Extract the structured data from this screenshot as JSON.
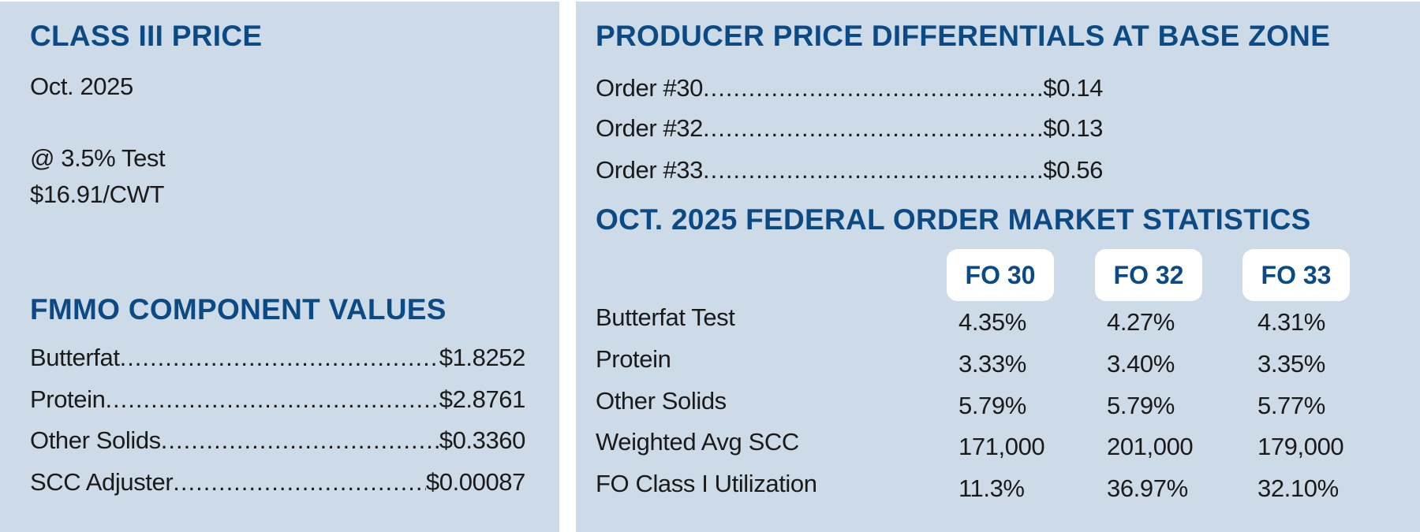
{
  "class_iii": {
    "title": "CLASS III PRICE",
    "month": "Oct. 2025",
    "test": "@ 3.5% Test",
    "price": "$16.91/CWT"
  },
  "fmmo": {
    "title": "FMMO COMPONENT VALUES",
    "items": [
      {
        "label": "Butterfat",
        "value": "$1.8252"
      },
      {
        "label": "Protein",
        "value": "$2.8761"
      },
      {
        "label": "Other Solids",
        "value": "$0.3360"
      },
      {
        "label": "SCC Adjuster",
        "value": "$0.00087"
      }
    ]
  },
  "ppd": {
    "title": "PRODUCER PRICE DIFFERENTIALS AT BASE ZONE",
    "items": [
      {
        "label": "Order #30",
        "value": "$0.14"
      },
      {
        "label": "Order #32",
        "value": "$0.13"
      },
      {
        "label": "Order #33",
        "value": "$0.56"
      }
    ]
  },
  "stats": {
    "title": "OCT. 2025 FEDERAL ORDER MARKET STATISTICS",
    "columns": [
      "FO 30",
      "FO 32",
      "FO 33"
    ],
    "rows": [
      {
        "label": "Butterfat Test",
        "values": [
          "4.35%",
          "4.27%",
          "4.31%"
        ]
      },
      {
        "label": "Protein",
        "values": [
          "3.33%",
          "3.40%",
          "3.35%"
        ]
      },
      {
        "label": "Other Solids",
        "values": [
          "5.79%",
          "5.79%",
          "5.77%"
        ]
      },
      {
        "label": "Weighted Avg SCC",
        "values": [
          "171,000",
          "201,000",
          "179,000"
        ]
      },
      {
        "label": "FO Class I Utilization",
        "values": [
          "11.3%",
          "36.97%",
          "32.10%"
        ]
      }
    ]
  },
  "colors": {
    "panel": "#cddbe8",
    "heading": "#0b4a85",
    "text": "#1a1a1a"
  }
}
